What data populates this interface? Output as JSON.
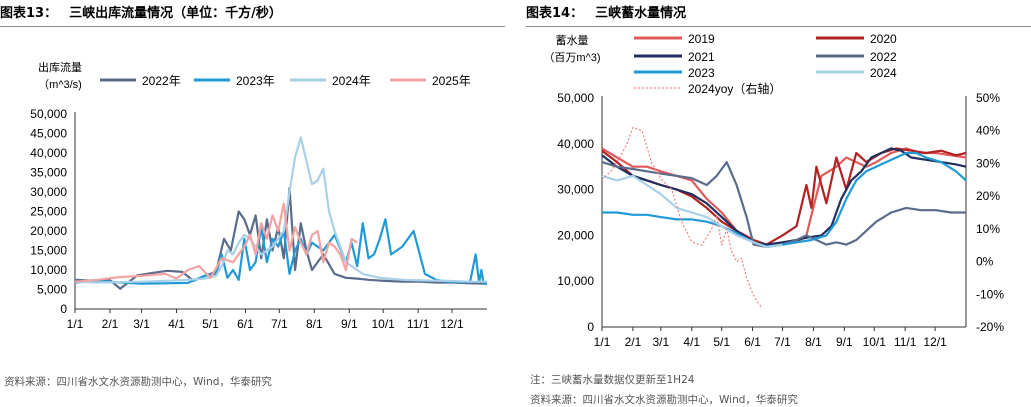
{
  "left_panel": {
    "figure_label": "图表13：",
    "title": "三峡出库流量情况（单位：千方/秒）",
    "source": "资料来源：四川省水文水资源勘测中心，Wind，华泰研究"
  },
  "right_panel": {
    "figure_label": "图表14：",
    "title": "三峡蓄水量情况",
    "note": "注：三峡蓄水量数据仅更新至1H24",
    "source": "资料来源：四川省水文水资源勘测中心，Wind，华泰研究"
  },
  "chart_data": [
    {
      "type": "line",
      "ylabel": "出库流量（m^3/s)",
      "ylim": [
        0,
        50000
      ],
      "yticks": [
        "0",
        "5,000",
        "10,000",
        "15,000",
        "20,000",
        "25,000",
        "30,000",
        "35,000",
        "40,000",
        "45,000",
        "50,000"
      ],
      "xticks": [
        "1/1",
        "2/1",
        "3/1",
        "4/1",
        "5/1",
        "6/1",
        "7/1",
        "8/1",
        "9/1",
        "10/1",
        "11/1",
        "12/1"
      ],
      "x_range_days": [
        0,
        365
      ],
      "legend_position": "top",
      "series": [
        {
          "name": "2022年",
          "color": "#5a6b8c",
          "x": [
            0,
            20,
            30,
            40,
            55,
            70,
            82,
            95,
            105,
            115,
            125,
            132,
            138,
            145,
            150,
            155,
            160,
            165,
            170,
            175,
            180,
            185,
            190,
            195,
            200,
            205,
            210,
            220,
            230,
            240,
            250,
            260,
            275,
            290,
            305,
            320,
            335,
            350,
            365
          ],
          "y": [
            7500,
            7200,
            7600,
            5200,
            8600,
            9300,
            9800,
            9500,
            7200,
            8500,
            9500,
            18000,
            15000,
            25000,
            23000,
            19000,
            24000,
            13000,
            23000,
            15000,
            21000,
            13000,
            31000,
            10000,
            22000,
            15000,
            10000,
            14000,
            9000,
            8000,
            7800,
            7500,
            7200,
            7000,
            7000,
            6800,
            6800,
            6600,
            6500
          ]
        },
        {
          "name": "2023年",
          "color": "#1f9ad6",
          "x": [
            0,
            20,
            40,
            60,
            80,
            100,
            115,
            125,
            130,
            135,
            140,
            145,
            150,
            155,
            160,
            165,
            170,
            175,
            180,
            185,
            190,
            195,
            200,
            205,
            210,
            220,
            230,
            240,
            245,
            250,
            255,
            260,
            265,
            270,
            275,
            280,
            290,
            300,
            310,
            320,
            330,
            345,
            350,
            355,
            358,
            360,
            362,
            365
          ],
          "y": [
            6800,
            7200,
            6800,
            6500,
            6600,
            6700,
            8500,
            9000,
            14000,
            8000,
            10000,
            7500,
            18000,
            10000,
            12000,
            21000,
            12000,
            18000,
            16000,
            20000,
            9000,
            15000,
            18000,
            14000,
            17000,
            15000,
            19000,
            12000,
            17000,
            11000,
            22000,
            13000,
            14000,
            18000,
            23000,
            14000,
            16000,
            20000,
            9000,
            7500,
            7000,
            6900,
            7000,
            14000,
            6800,
            10000,
            6500,
            6400
          ]
        },
        {
          "name": "2024年",
          "color": "#a8d0e8",
          "x": [
            0,
            20,
            40,
            60,
            80,
            100,
            115,
            125,
            130,
            135,
            140,
            145,
            150,
            155,
            160,
            165,
            170,
            175,
            180,
            185,
            190,
            195,
            200,
            205,
            210,
            215,
            220,
            225,
            230,
            240,
            255,
            270,
            290,
            310,
            330,
            350,
            365
          ],
          "y": [
            7000,
            6800,
            6900,
            7000,
            7200,
            7500,
            7800,
            8500,
            11000,
            15000,
            14000,
            17000,
            19000,
            18000,
            16000,
            14000,
            15000,
            16000,
            18000,
            20000,
            30000,
            39000,
            44000,
            38000,
            32000,
            33000,
            36000,
            25000,
            20000,
            12000,
            9000,
            8000,
            7500,
            7300,
            7200,
            7000,
            7000
          ]
        },
        {
          "name": "2025年",
          "color": "#f4a3a3",
          "x": [
            0,
            20,
            40,
            60,
            80,
            90,
            100,
            110,
            120,
            130,
            140,
            150,
            155,
            160,
            165,
            170,
            175,
            180,
            185,
            190,
            195,
            200,
            205,
            210,
            215,
            220,
            225,
            230,
            235,
            240,
            245,
            250
          ],
          "y": [
            7000,
            7500,
            8200,
            8500,
            9000,
            7800,
            10000,
            11000,
            8000,
            13000,
            12000,
            16000,
            19000,
            14000,
            22000,
            18000,
            24000,
            20000,
            27000,
            15000,
            21000,
            17000,
            14000,
            19000,
            20000,
            12000,
            17000,
            16000,
            14000,
            10000,
            18000,
            17000
          ]
        }
      ]
    },
    {
      "type": "line",
      "ylabel": "蓄水量（百万m^3)",
      "ylim": [
        0,
        50000
      ],
      "y2lim": [
        -20,
        50
      ],
      "yticks": [
        "0",
        "10,000",
        "20,000",
        "30,000",
        "40,000",
        "50,000"
      ],
      "y2ticks": [
        "-20%",
        "-10%",
        "0%",
        "10%",
        "20%",
        "30%",
        "40%",
        "50%"
      ],
      "xticks": [
        "1/1",
        "2/1",
        "3/1",
        "4/1",
        "5/1",
        "6/1",
        "7/1",
        "8/1",
        "9/1",
        "10/1",
        "11/1",
        "12/1"
      ],
      "x_range_days": [
        0,
        365
      ],
      "legend_position": "top",
      "series": [
        {
          "name": "2019",
          "color": "#e05a5a",
          "axis": "left",
          "x": [
            0,
            15,
            31,
            45,
            59,
            75,
            90,
            105,
            120,
            135,
            152,
            165,
            181,
            195,
            205,
            213,
            220,
            235,
            245,
            255,
            265,
            275,
            290,
            305,
            320,
            335,
            350,
            365
          ],
          "y": [
            39000,
            37000,
            35000,
            35000,
            34000,
            33000,
            32000,
            28000,
            25000,
            21000,
            18500,
            18000,
            18000,
            18500,
            20000,
            27000,
            33000,
            35000,
            37000,
            36000,
            35000,
            36000,
            38000,
            39000,
            38000,
            38000,
            37500,
            37000
          ]
        },
        {
          "name": "2020",
          "color": "#b22222",
          "axis": "left",
          "x": [
            0,
            15,
            31,
            45,
            59,
            75,
            90,
            105,
            120,
            135,
            152,
            165,
            181,
            195,
            205,
            210,
            215,
            225,
            235,
            245,
            255,
            265,
            280,
            295,
            310,
            325,
            340,
            355,
            365
          ],
          "y": [
            38500,
            36000,
            33000,
            32000,
            31000,
            30000,
            28500,
            26000,
            23000,
            21000,
            19000,
            18000,
            20000,
            22000,
            31000,
            26000,
            35000,
            27000,
            37000,
            30000,
            38000,
            36000,
            38000,
            39000,
            38500,
            38000,
            38500,
            37500,
            38000
          ]
        },
        {
          "name": "2021",
          "color": "#1f2f5e",
          "axis": "left",
          "x": [
            0,
            15,
            31,
            45,
            59,
            75,
            90,
            105,
            120,
            135,
            152,
            165,
            181,
            195,
            205,
            220,
            230,
            240,
            250,
            260,
            270,
            280,
            290,
            300,
            310,
            325,
            340,
            355,
            365
          ],
          "y": [
            37500,
            35000,
            33000,
            32000,
            31000,
            30000,
            29000,
            27000,
            24000,
            21000,
            18500,
            18000,
            18500,
            19000,
            19500,
            20000,
            22000,
            28000,
            32000,
            34000,
            37000,
            38000,
            39000,
            38500,
            37000,
            36500,
            36000,
            35500,
            35000
          ]
        },
        {
          "name": "2022",
          "color": "#5a6b8c",
          "axis": "left",
          "x": [
            0,
            15,
            31,
            45,
            59,
            75,
            90,
            105,
            115,
            125,
            135,
            145,
            152,
            165,
            181,
            195,
            205,
            215,
            225,
            235,
            245,
            255,
            265,
            275,
            290,
            305,
            320,
            335,
            350,
            365
          ],
          "y": [
            36000,
            35000,
            34500,
            34000,
            33500,
            33000,
            32500,
            31000,
            33000,
            36000,
            31000,
            24000,
            18000,
            17500,
            18000,
            19000,
            20000,
            19000,
            18000,
            18500,
            18000,
            19000,
            21000,
            23000,
            25000,
            26000,
            25500,
            25500,
            25000,
            25000
          ]
        },
        {
          "name": "2023",
          "color": "#1f9ad6",
          "axis": "left",
          "x": [
            0,
            15,
            31,
            45,
            59,
            75,
            90,
            105,
            120,
            135,
            152,
            165,
            181,
            195,
            210,
            225,
            235,
            245,
            255,
            265,
            275,
            285,
            295,
            305,
            315,
            325,
            340,
            355,
            365
          ],
          "y": [
            25000,
            25000,
            24500,
            24500,
            24000,
            23500,
            23500,
            23000,
            22000,
            20500,
            18500,
            17500,
            18000,
            18500,
            19000,
            20000,
            23000,
            28000,
            32000,
            34000,
            35000,
            36000,
            37000,
            38000,
            38000,
            37000,
            36000,
            34000,
            32000
          ]
        },
        {
          "name": "2024",
          "color": "#a8d0e8",
          "axis": "left",
          "x": [
            0,
            15,
            31,
            45,
            59,
            75,
            90,
            105,
            120,
            135,
            152,
            165,
            181
          ],
          "y": [
            33000,
            32000,
            33000,
            31000,
            29000,
            26000,
            25000,
            24000,
            22000,
            20000,
            18500,
            17500,
            18000
          ]
        },
        {
          "name": "2024yoy（右轴）",
          "color": "#f08080",
          "axis": "right",
          "dashed": true,
          "x": [
            0,
            10,
            20,
            25,
            31,
            40,
            50,
            60,
            70,
            80,
            90,
            100,
            110,
            115,
            120,
            125,
            130,
            135,
            140,
            145,
            150,
            155,
            160
          ],
          "y": [
            25,
            28,
            33,
            36,
            41,
            40,
            30,
            25,
            22,
            12,
            6,
            5,
            10,
            14,
            5,
            10,
            3,
            0,
            1,
            -5,
            -9,
            -12,
            -14
          ]
        }
      ]
    }
  ]
}
